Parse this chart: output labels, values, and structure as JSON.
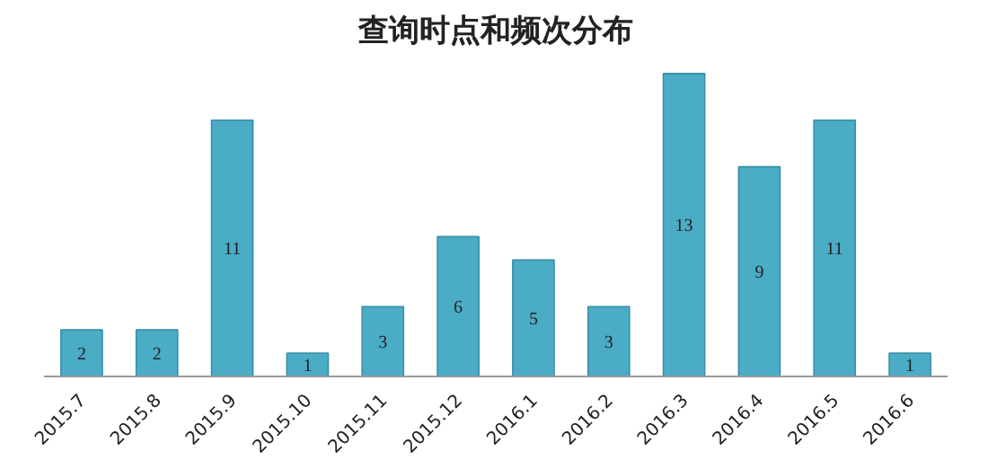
{
  "chart_data": {
    "type": "bar",
    "title": "查询时点和频次分布",
    "categories": [
      "2015.7",
      "2015.8",
      "2015.9",
      "2015.10",
      "2015.11",
      "2015.12",
      "2016.1",
      "2016.2",
      "2016.3",
      "2016.4",
      "2016.5",
      "2016.6"
    ],
    "values": [
      2,
      2,
      11,
      1,
      3,
      6,
      5,
      3,
      13,
      9,
      11,
      1
    ],
    "color": "#4bacc6",
    "data_labels": true
  }
}
